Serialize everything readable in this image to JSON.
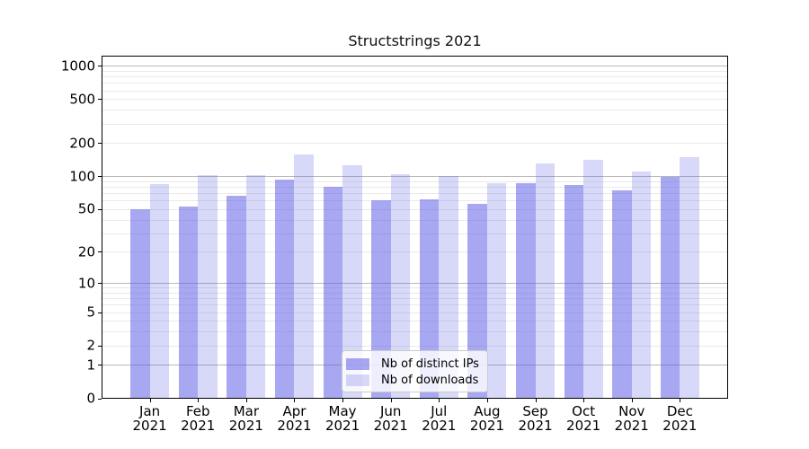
{
  "title": "Structstrings 2021",
  "chart_data": {
    "type": "bar",
    "title": "Structstrings 2021",
    "categories": [
      "Jan",
      "Feb",
      "Mar",
      "Apr",
      "May",
      "Jun",
      "Jul",
      "Aug",
      "Sep",
      "Oct",
      "Nov",
      "Dec"
    ],
    "category_year": "2021",
    "series": [
      {
        "name": "Nb of distinct IPs",
        "values": [
          50,
          53,
          66,
          94,
          80,
          60,
          62,
          56,
          87,
          83,
          74,
          99
        ],
        "fill": "#aaaaf0",
        "alpha": 0.53
      },
      {
        "name": "Nb of downloads",
        "values": [
          84,
          103,
          102,
          158,
          127,
          105,
          100,
          86,
          131,
          141,
          110,
          148
        ],
        "fill": "#d9d9f8",
        "alpha": 0.24
      }
    ],
    "base_color": "#5a5ae6",
    "yscale": "log1p",
    "ylim": [
      0,
      1236
    ],
    "y_ticks": [
      1000,
      500,
      200,
      100,
      50,
      20,
      10,
      5,
      2,
      1,
      0
    ],
    "grid": "on",
    "grid_major_color": "#b8b8b8",
    "grid_minor_color": "#e9e9e9",
    "legend_position": "lower center",
    "axis_color": "#000000",
    "text_color": "#111111"
  },
  "legend": {
    "items": [
      {
        "label": "Nb of distinct IPs"
      },
      {
        "label": "Nb of downloads"
      }
    ]
  }
}
